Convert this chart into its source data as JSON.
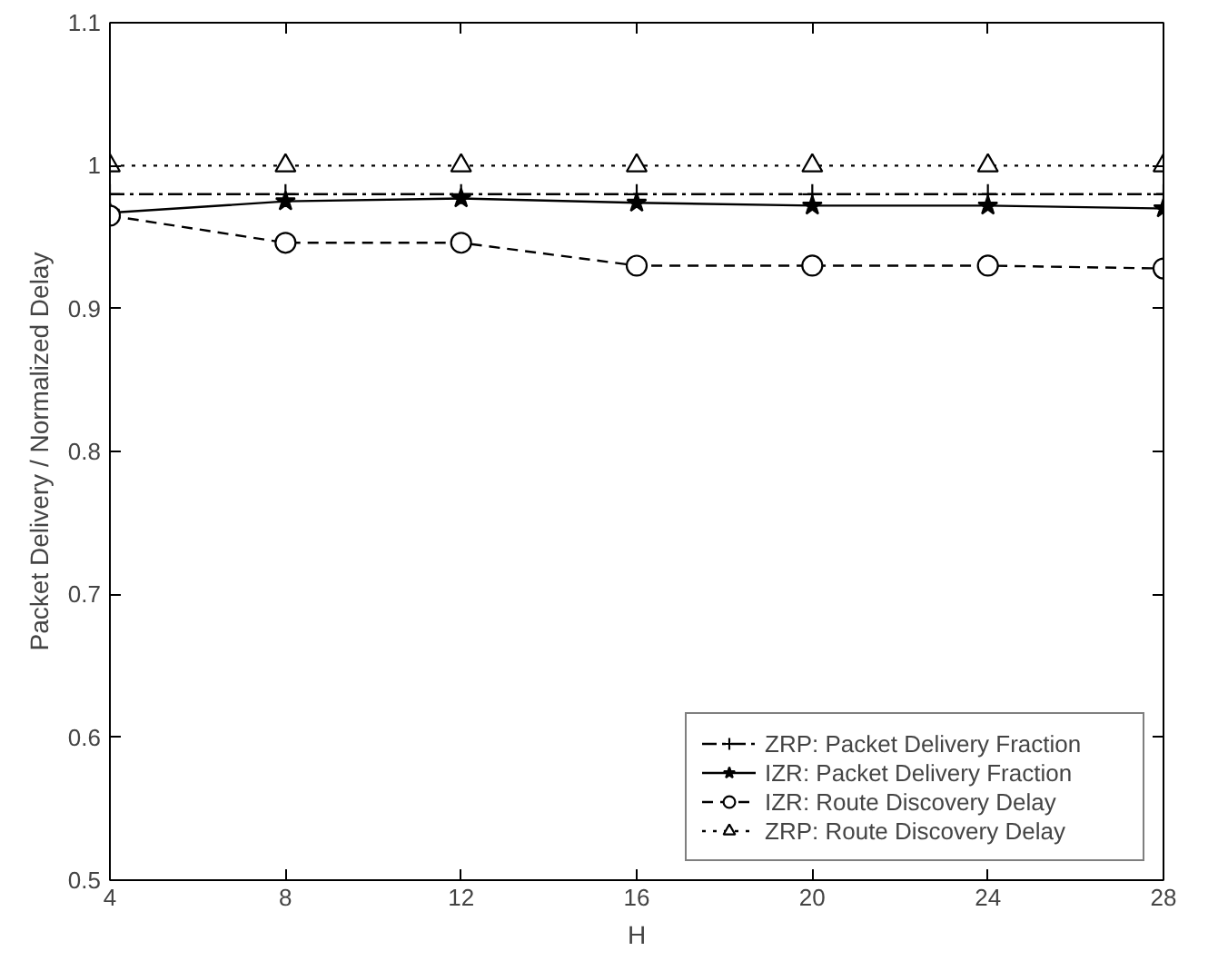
{
  "chart_data": {
    "type": "line",
    "xlabel": "H",
    "ylabel": "Packet Delivery / Normalized Delay",
    "x": [
      4,
      8,
      12,
      16,
      20,
      24,
      28
    ],
    "xlim": [
      4,
      28
    ],
    "xticks": [
      4,
      8,
      12,
      16,
      20,
      24,
      28
    ],
    "ylim": [
      0.5,
      1.1
    ],
    "yticks": [
      0.5,
      0.6,
      0.7,
      0.8,
      0.9,
      {
        "value": 1,
        "label": "1"
      },
      1.1
    ],
    "grid": false,
    "legend": "bottom right",
    "series": [
      {
        "name": "ZRP: Packet Delivery Fraction",
        "color": "#000000",
        "marker": "cross",
        "line_style": "dashdot",
        "values": [
          0.98,
          0.98,
          0.98,
          0.98,
          0.98,
          0.98,
          0.98
        ]
      },
      {
        "name": "IZR: Packet Delivery Fraction",
        "color": "#000000",
        "marker": "star",
        "line_style": "solid",
        "values": [
          0.967,
          0.975,
          0.977,
          0.974,
          0.972,
          0.972,
          0.97
        ]
      },
      {
        "name": "IZR: Route Discovery Delay",
        "color": "#000000",
        "marker": "circle",
        "line_style": "dashed",
        "values": [
          0.965,
          0.946,
          0.946,
          0.93,
          0.93,
          0.93,
          0.928
        ]
      },
      {
        "name": "ZRP: Route Discovery Delay",
        "color": "#000000",
        "marker": "triangle",
        "line_style": "dotted",
        "values": [
          1,
          1,
          1,
          1,
          1,
          1,
          1
        ]
      }
    ]
  }
}
